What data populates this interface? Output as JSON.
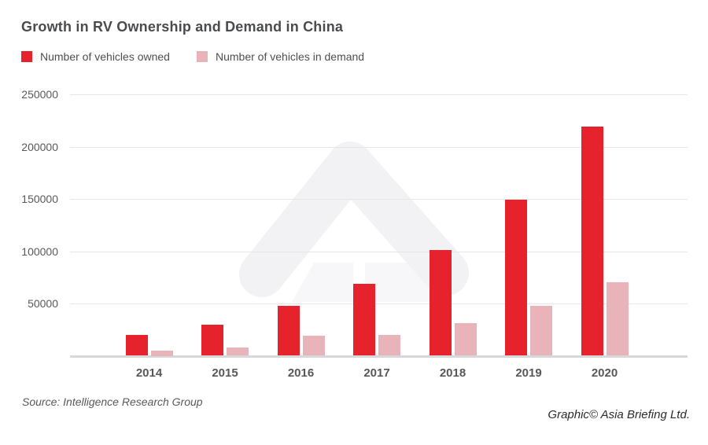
{
  "chart_data": {
    "type": "bar",
    "title": "Growth in RV Ownership and Demand in China",
    "categories": [
      "2014",
      "2015",
      "2016",
      "2017",
      "2018",
      "2019",
      "2020"
    ],
    "series": [
      {
        "name": "Number of vehicles owned",
        "color": "#e6222c",
        "values": [
          20000,
          30000,
          48000,
          69000,
          101000,
          149000,
          219000
        ]
      },
      {
        "name": "Number of vehicles in demand",
        "color": "#e9b3ba",
        "values": [
          5000,
          8000,
          19000,
          20000,
          31000,
          48000,
          70000
        ]
      }
    ],
    "xlabel": "",
    "ylabel": "",
    "ylim": [
      0,
      250000
    ],
    "yticks": [
      50000,
      100000,
      150000,
      200000,
      250000
    ],
    "grid": "horizontal",
    "legend_position": "top-left"
  },
  "footer": {
    "source": "Source: Intelligence Research Group",
    "credit": "Graphic© Asia Briefing Ltd."
  },
  "colors": {
    "owned_red": "#e6222c",
    "demand_pink": "#e9b3ba",
    "gridline": "#e6e6e8",
    "baseline": "#d8d8da",
    "axis_text": "#595959",
    "title_text": "#4a4b4d",
    "watermark_gray": "#f2f2f4",
    "watermark_light_gray": "#f7f7f9"
  }
}
